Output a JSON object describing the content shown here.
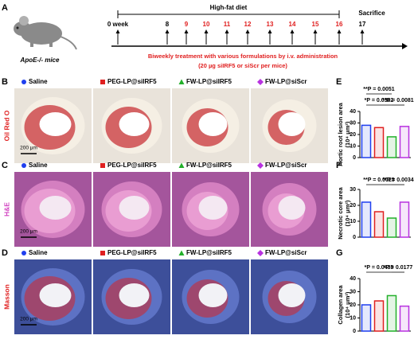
{
  "panel_letters": [
    "A",
    "B",
    "C",
    "D",
    "E",
    "F",
    "G"
  ],
  "timeline": {
    "mouse_label": "ApoE-/- mice",
    "diet": "High-fat diet",
    "endpoint": "Sacrifice",
    "weeks": [
      {
        "label": "0 week",
        "color": "#000000"
      },
      {
        "label": "8",
        "color": "#000000"
      },
      {
        "label": "9",
        "color": "#e02020"
      },
      {
        "label": "10",
        "color": "#e02020"
      },
      {
        "label": "11",
        "color": "#e02020"
      },
      {
        "label": "12",
        "color": "#e02020"
      },
      {
        "label": "13",
        "color": "#e02020"
      },
      {
        "label": "14",
        "color": "#e02020"
      },
      {
        "label": "15",
        "color": "#e02020"
      },
      {
        "label": "16",
        "color": "#e02020"
      },
      {
        "label": "17",
        "color": "#000000"
      }
    ],
    "treatment": "Biweekly treatment with various formulations by i.v. administration",
    "dose": "(20 µg siIRF5 or siScr per mice)"
  },
  "legend": [
    {
      "name": "Saline",
      "color": "#1f3fef",
      "marker": "circle"
    },
    {
      "name": "PEG-LP@siIRF5",
      "color": "#e02020",
      "marker": "square"
    },
    {
      "name": "FW-LP@siIRF5",
      "color": "#22b02a",
      "marker": "triangle"
    },
    {
      "name": "FW-LP@siScr",
      "color": "#b832e0",
      "marker": "diamond"
    }
  ],
  "stains": [
    "Oil Red O",
    "H&E",
    "Masson"
  ],
  "scale_bar": "200 μm",
  "chart_data": [
    {
      "type": "bar",
      "ylabel": "Aortic root lesion area",
      "yunit": "(10⁴ μm²)",
      "categories": [
        null,
        null,
        null,
        null
      ],
      "values": [
        28,
        26,
        18,
        27
      ],
      "colors": [
        "#1f3fef",
        "#e02020",
        "#22b02a",
        "#b832e0"
      ],
      "ylim": [
        0,
        40
      ],
      "yticks": [
        0,
        10,
        20,
        30,
        40
      ],
      "annotations": [
        "**P = 0.0051",
        "*P = 0.0362",
        "**P = 0.0081"
      ]
    },
    {
      "type": "bar",
      "ylabel": "Necrotic core area",
      "yunit": "(10⁴ μm²)",
      "categories": [
        null,
        null,
        null,
        null
      ],
      "values": [
        22,
        16,
        12,
        22
      ],
      "colors": [
        "#1f3fef",
        "#e02020",
        "#22b02a",
        "#b832e0"
      ],
      "ylim": [
        0,
        30
      ],
      "yticks": [
        0,
        10,
        20,
        30
      ],
      "annotations": [
        "**P = 0.0025",
        "**P = 0.0034"
      ]
    },
    {
      "type": "bar",
      "ylabel": "Collagen area",
      "yunit": "(10⁴ μm²)",
      "categories": [
        null,
        null,
        null,
        null
      ],
      "values": [
        20,
        23,
        27,
        19
      ],
      "colors": [
        "#1f3fef",
        "#e02020",
        "#22b02a",
        "#b832e0"
      ],
      "ylim": [
        0,
        40
      ],
      "yticks": [
        0,
        10,
        20,
        30,
        40
      ],
      "annotations": [
        "*P = 0.0435",
        "*P = 0.0177"
      ]
    }
  ]
}
